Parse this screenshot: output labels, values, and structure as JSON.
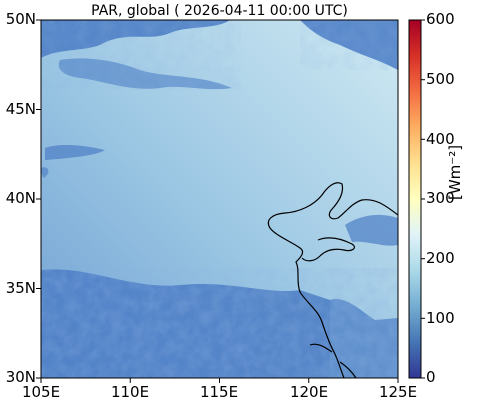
{
  "title": "PAR, global ( 2026-04-11 00:00 UTC)",
  "map": {
    "lat_ticks": [
      "50N",
      "45N",
      "40N",
      "35N",
      "30N"
    ],
    "lon_ticks": [
      "105E",
      "110E",
      "115E",
      "120E",
      "125E"
    ],
    "lat_range": [
      30,
      50
    ],
    "lon_range": [
      105,
      125
    ]
  },
  "colorbar": {
    "ticks": [
      "600",
      "500",
      "400",
      "300",
      "200",
      "100",
      "0"
    ],
    "range": [
      0,
      600
    ],
    "units": "[Wm⁻²]",
    "colormap": [
      "#313695",
      "#4575b4",
      "#74add1",
      "#abd9e9",
      "#e0f3f8",
      "#ffffbf",
      "#fee090",
      "#fdae61",
      "#f46d43",
      "#d73027",
      "#a50026"
    ]
  },
  "colors": {
    "background": "#8fbfe0",
    "cloud": "#4a7cc4",
    "coastline": "#000000"
  }
}
